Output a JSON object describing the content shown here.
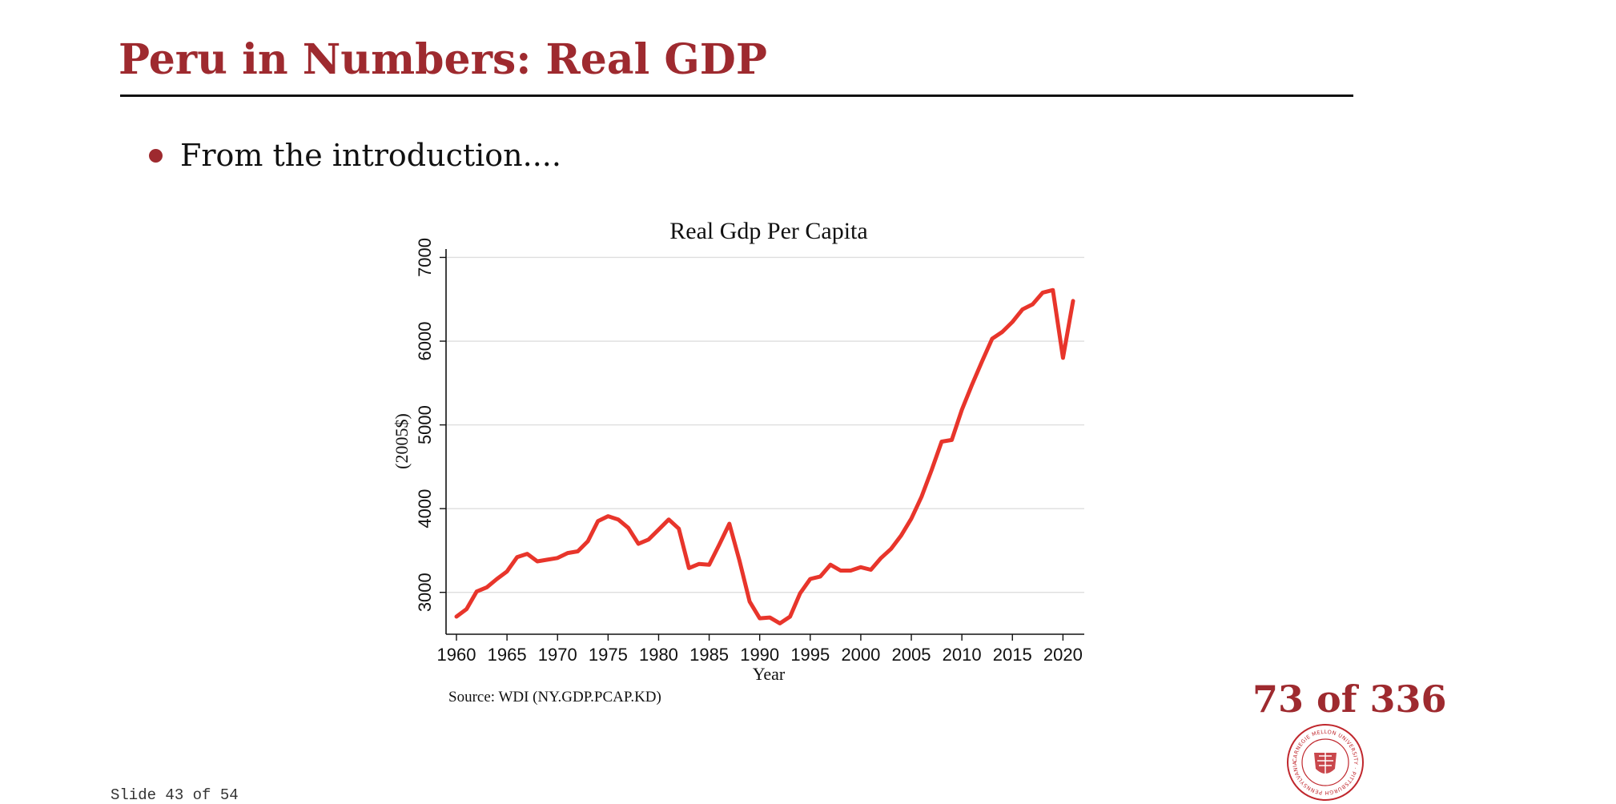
{
  "slide": {
    "title": "Peru in Numbers: Real GDP",
    "bullet": "From the introduction....",
    "source": "Source: WDI (NY.GDP.PCAP.KD)",
    "counter": "73 of 336",
    "deck_counter": "Slide 43 of 54",
    "seal_text": "CARNEGIE MELLON UNIVERSITY · PITTSBURGH PENNSYLVANIA",
    "accent_color": "#9e2a2f",
    "line_color": "#e8352b"
  },
  "chart_data": {
    "type": "line",
    "title": "Real Gdp Per Capita",
    "xlabel": "Year",
    "ylabel": "(2005$)",
    "xlim": [
      1960,
      2021
    ],
    "ylim": [
      2500,
      7100
    ],
    "xticks": [
      1960,
      1965,
      1970,
      1975,
      1980,
      1985,
      1990,
      1995,
      2000,
      2005,
      2010,
      2015,
      2020
    ],
    "yticks": [
      3000,
      4000,
      5000,
      6000,
      7000
    ],
    "grid": true,
    "x": [
      1960,
      1961,
      1962,
      1963,
      1964,
      1965,
      1966,
      1967,
      1968,
      1969,
      1970,
      1971,
      1972,
      1973,
      1974,
      1975,
      1976,
      1977,
      1978,
      1979,
      1980,
      1981,
      1982,
      1983,
      1984,
      1985,
      1986,
      1987,
      1988,
      1989,
      1990,
      1991,
      1992,
      1993,
      1994,
      1995,
      1996,
      1997,
      1998,
      1999,
      2000,
      2001,
      2002,
      2003,
      2004,
      2005,
      2006,
      2007,
      2008,
      2009,
      2010,
      2011,
      2012,
      2013,
      2014,
      2015,
      2016,
      2017,
      2018,
      2019,
      2020,
      2021
    ],
    "values": [
      2710,
      2800,
      3010,
      3060,
      3160,
      3250,
      3420,
      3460,
      3370,
      3390,
      3410,
      3470,
      3490,
      3610,
      3850,
      3910,
      3870,
      3770,
      3580,
      3630,
      3750,
      3870,
      3760,
      3290,
      3340,
      3330,
      3570,
      3820,
      3380,
      2890,
      2690,
      2700,
      2630,
      2710,
      2990,
      3160,
      3190,
      3330,
      3260,
      3260,
      3300,
      3270,
      3410,
      3520,
      3680,
      3880,
      4140,
      4460,
      4800,
      4820,
      5180,
      5480,
      5760,
      6030,
      6110,
      6230,
      6380,
      6440,
      6580,
      6610,
      5800,
      6480
    ]
  }
}
